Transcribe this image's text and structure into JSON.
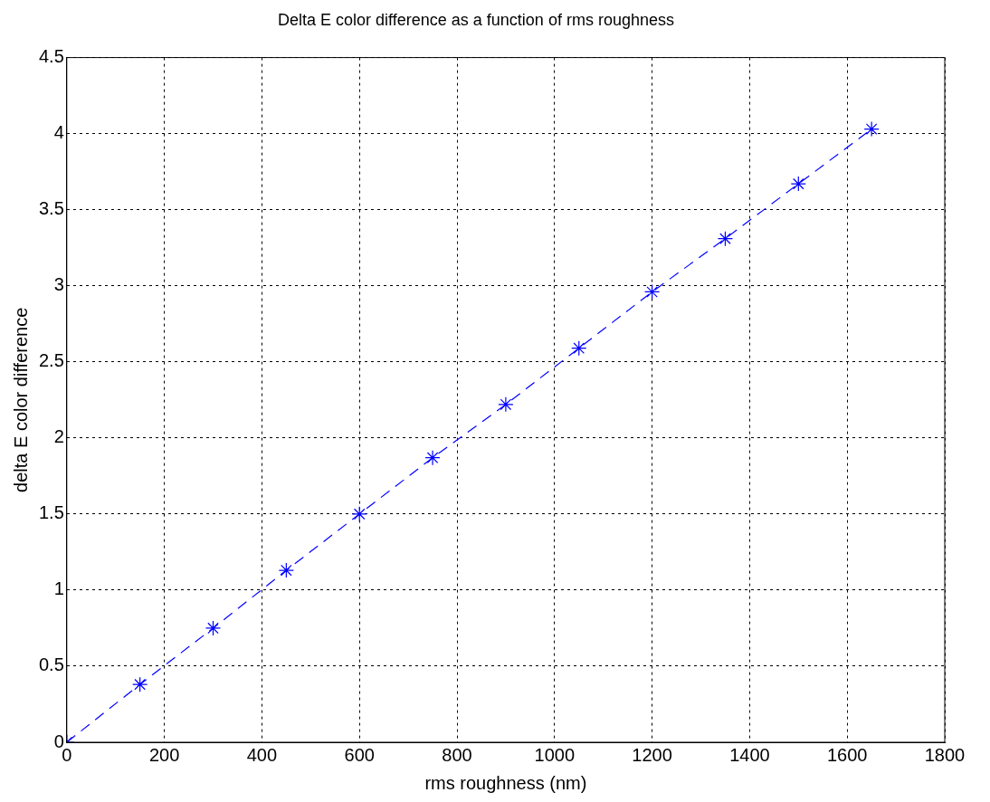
{
  "chart_data": {
    "type": "line",
    "title": "Delta E color difference as a function of rms roughness",
    "xlabel": "rms roughness (nm)",
    "ylabel": "delta E color difference",
    "x": [
      0,
      150,
      300,
      450,
      600,
      750,
      900,
      1050,
      1200,
      1350,
      1500,
      1650
    ],
    "series": [
      {
        "color": "#0000ff",
        "values": [
          0,
          0.38,
          0.75,
          1.13,
          1.5,
          1.87,
          2.22,
          2.59,
          2.96,
          3.31,
          3.67,
          4.03
        ]
      }
    ],
    "xlim": [
      0,
      1800
    ],
    "xticks": [
      0,
      200,
      400,
      600,
      800,
      1000,
      1200,
      1400,
      1600,
      1800
    ],
    "ylim": [
      0,
      4.5
    ],
    "yticks": [
      0,
      0.5,
      1,
      1.5,
      2,
      2.5,
      3,
      3.5,
      4,
      4.5
    ],
    "grid": true,
    "legend": false,
    "marker": "cross",
    "line_style": "dashed"
  }
}
